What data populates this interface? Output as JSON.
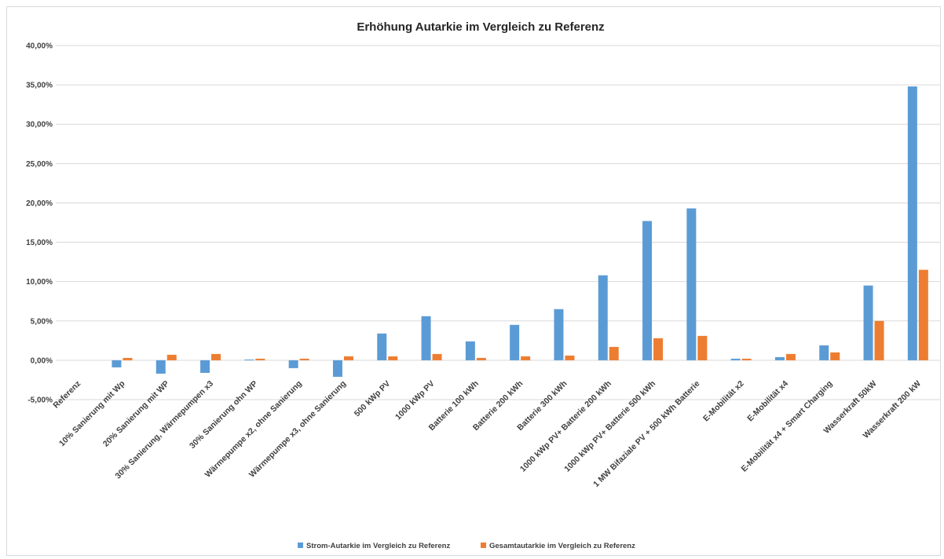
{
  "chart_data": {
    "type": "bar",
    "title": "Erhöhung Autarkie im Vergleich zu Referenz",
    "xlabel": "",
    "ylabel": "",
    "ylim": [
      -0.05,
      0.4
    ],
    "yticks": [
      -0.05,
      0,
      0.05,
      0.1,
      0.15,
      0.2,
      0.25,
      0.3,
      0.35,
      0.4
    ],
    "ytick_labels": [
      "-5,00%",
      "0,00%",
      "5,00%",
      "10,00%",
      "15,00%",
      "20,00%",
      "25,00%",
      "30,00%",
      "35,00%",
      "40,00%"
    ],
    "grid": true,
    "legend_position": "bottom",
    "categories": [
      "Referenz",
      "10% Sanierung mit Wp",
      "20% Sanierung mit WP",
      "30% Sanierung, Wärmepumpen x3",
      "30% Sanierung ohn WP",
      "Wärmepumpe x2, ohne Sanierung",
      "Wärmepumpe x3, ohne Sanierung",
      "500 kWp PV",
      "1000 kWp PV",
      "Batterie 100 kWh",
      "Batterie 200 kWh",
      "Batterie 300 kWh",
      "1000 kWp PV+ Batterie 200 kWh",
      "1000 kWp PV+ Batterie 500 kWh",
      "1 MW Bifaziale PV + 500 kWh Batterie",
      "E-Mobilität x2",
      "E-Mobilität x4",
      "E-Mobilität x4 + Smart Charging",
      "Wasserkraft 50kW",
      "Wasserkraft 200 kW"
    ],
    "series": [
      {
        "name": "Strom-Autarkie im Vergleich zu Referenz",
        "color": "#5b9bd5",
        "values": [
          0,
          -0.009,
          -0.017,
          -0.016,
          0.001,
          -0.01,
          -0.021,
          0.034,
          0.056,
          0.024,
          0.045,
          0.065,
          0.108,
          0.177,
          0.193,
          0.002,
          0.004,
          0.019,
          0.095,
          0.348
        ]
      },
      {
        "name": "Gesamtautarkie im Vergleich zu Referenz",
        "color": "#ed7d31",
        "values": [
          0,
          0.003,
          0.007,
          0.008,
          0.002,
          0.002,
          0.005,
          0.005,
          0.008,
          0.003,
          0.005,
          0.006,
          0.017,
          0.028,
          0.031,
          0.002,
          0.008,
          0.01,
          0.05,
          0.115
        ]
      }
    ]
  }
}
